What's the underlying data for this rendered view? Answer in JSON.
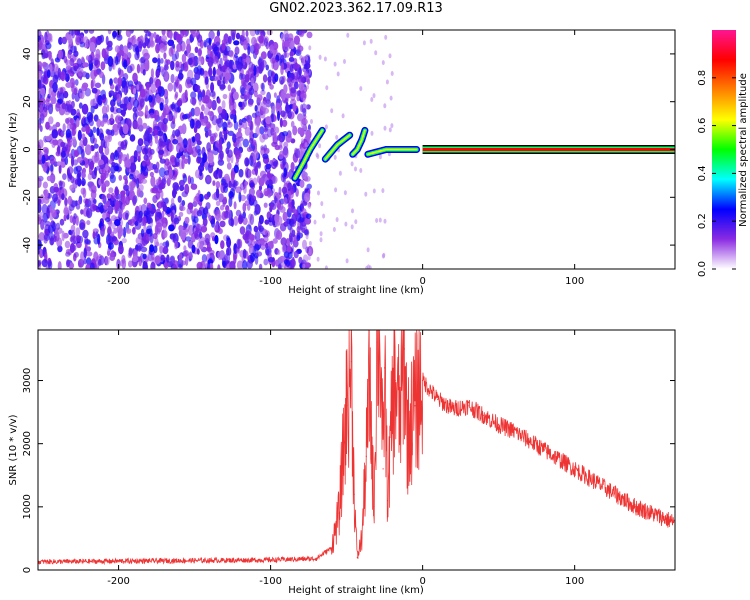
{
  "title": "GN02.2023.362.17.09.R13",
  "chart_data": [
    {
      "type": "heatmap",
      "xlabel": "Height of straight line (km)",
      "ylabel": "Frequency (Hz)",
      "xlim": [
        -253,
        166
      ],
      "ylim": [
        -50,
        50
      ],
      "xticks": [
        -200,
        -100,
        0,
        100
      ],
      "yticks": [
        -40,
        -20,
        0,
        20,
        40
      ],
      "grid": false,
      "colorbar": {
        "label": "Normalized spectral amplitude",
        "range": [
          0,
          1
        ],
        "ticks": [
          0.0,
          0.2,
          0.4,
          0.6,
          0.8
        ],
        "colors": [
          "#ffffff",
          "#8a2be2",
          "#0000ff",
          "#00ffff",
          "#00ff00",
          "#ffff00",
          "#ff8000",
          "#ff0000",
          "#ff1493"
        ]
      },
      "features": {
        "noise_region_x": [
          -253,
          -80
        ],
        "transition_x": [
          -85,
          -30
        ],
        "carrier_line": {
          "x_start": 0,
          "x_end": 166,
          "frequency": 0,
          "color": "#ff0000"
        }
      }
    },
    {
      "type": "line",
      "xlabel": "Height of straight line (km)",
      "ylabel": "SNR (10 * v/v)",
      "xlim": [
        -253,
        166
      ],
      "ylim": [
        0,
        3800
      ],
      "xticks": [
        -200,
        -100,
        0,
        100
      ],
      "yticks": [
        0,
        1000,
        2000,
        3000
      ],
      "grid": false,
      "series": [
        {
          "color": "#ee3333",
          "x": [
            -253,
            -200,
            -150,
            -100,
            -70,
            -60,
            -55,
            -50,
            -47,
            -45,
            -43,
            -40,
            -37,
            -35,
            -32,
            -30,
            -28,
            -26,
            -25,
            -23,
            -20,
            -18,
            -15,
            -12,
            -10,
            -5,
            0,
            10,
            20,
            30,
            40,
            50,
            60,
            80,
            100,
            120,
            140,
            166
          ],
          "values": [
            130,
            140,
            150,
            160,
            180,
            350,
            900,
            2600,
            3300,
            1200,
            200,
            500,
            1800,
            3000,
            1000,
            3600,
            3800,
            1600,
            3200,
            1100,
            2500,
            3000,
            2400,
            3500,
            2100,
            2600,
            3000,
            2700,
            2550,
            2600,
            2450,
            2300,
            2200,
            1900,
            1600,
            1300,
            1000,
            750
          ]
        }
      ]
    }
  ]
}
